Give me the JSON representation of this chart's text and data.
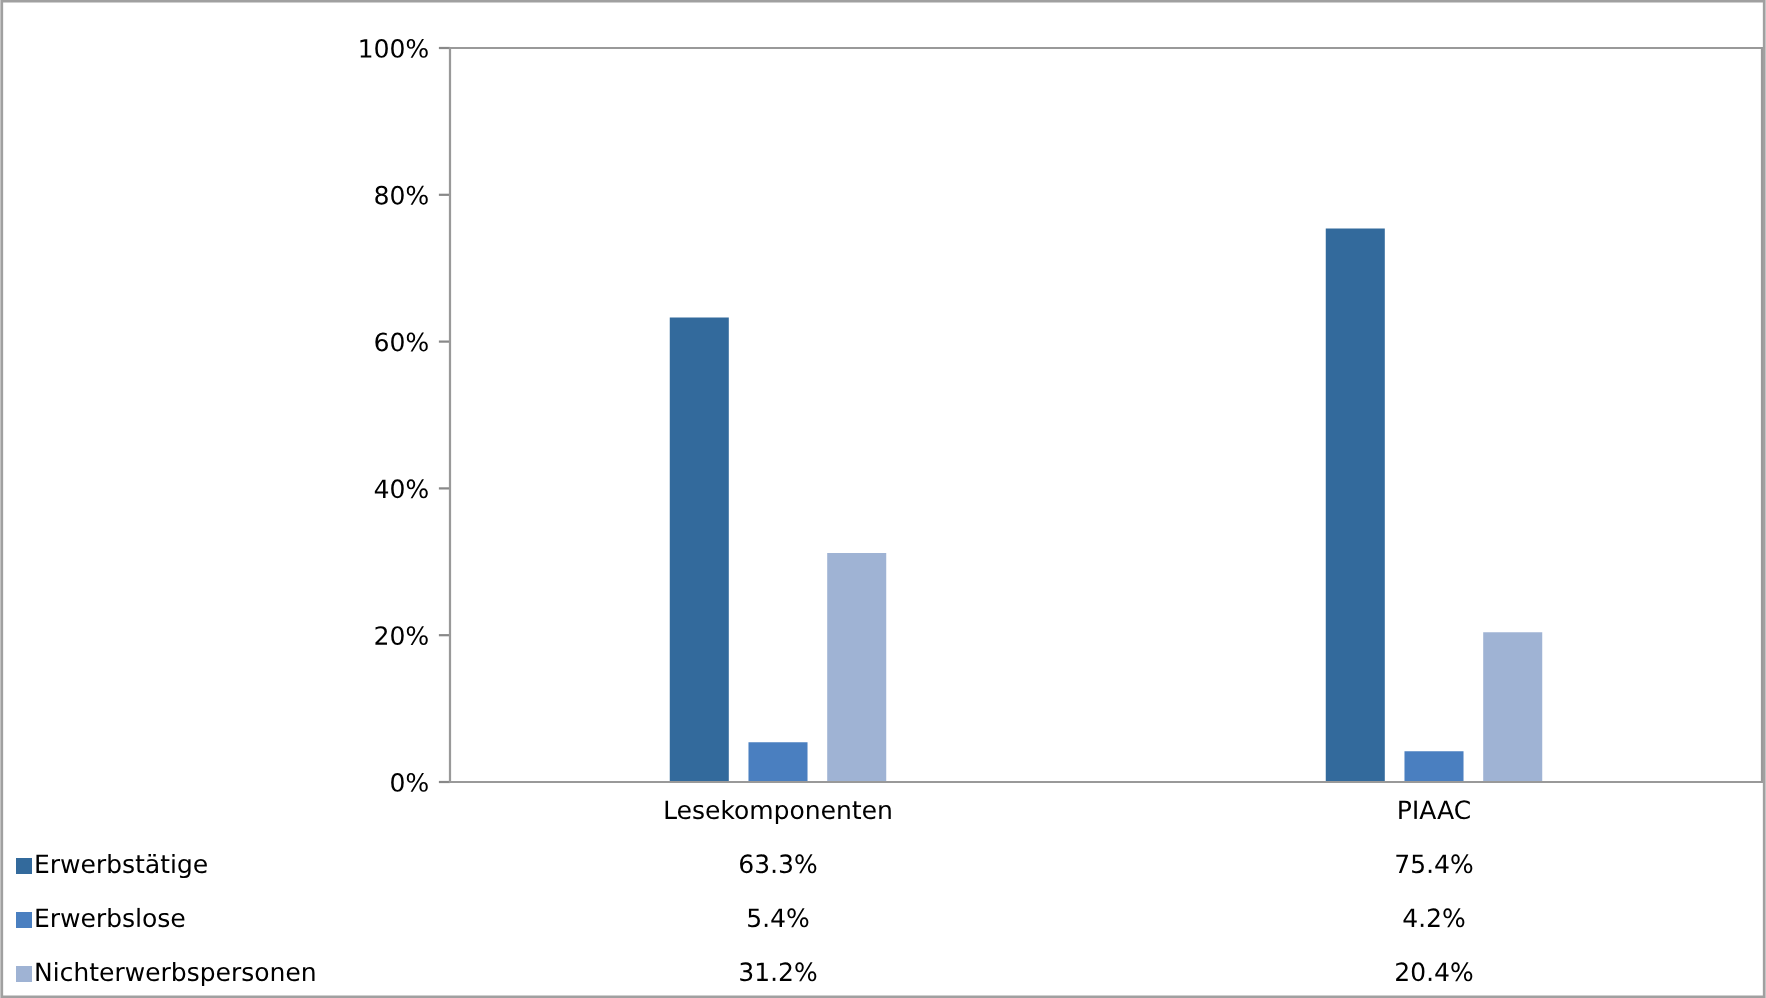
{
  "chart_data": {
    "type": "bar",
    "categories": [
      "Lesekomponenten",
      "PIAAC"
    ],
    "series": [
      {
        "name": "Erwerbstätige",
        "color": "#336a9c",
        "values": [
          63.3,
          75.4
        ]
      },
      {
        "name": "Erwerbslose",
        "color": "#4a7fc0",
        "values": [
          5.4,
          4.2
        ]
      },
      {
        "name": "Nichterwerbspersonen",
        "color": "#9fb3d4",
        "values": [
          31.2,
          20.4
        ]
      }
    ],
    "ylim": [
      0,
      100
    ],
    "yticks": [
      {
        "value": 0,
        "label": "0%"
      },
      {
        "value": 20,
        "label": "20%"
      },
      {
        "value": 40,
        "label": "40%"
      },
      {
        "value": 60,
        "label": "60%"
      },
      {
        "value": 80,
        "label": "80%"
      },
      {
        "value": 100,
        "label": "100%"
      }
    ],
    "value_labels": [
      [
        "63.3%",
        "75.4%"
      ],
      [
        "5.4%",
        "4.2%"
      ],
      [
        "31.2%",
        "20.4%"
      ]
    ],
    "grid": false,
    "legend": "bottom left"
  }
}
